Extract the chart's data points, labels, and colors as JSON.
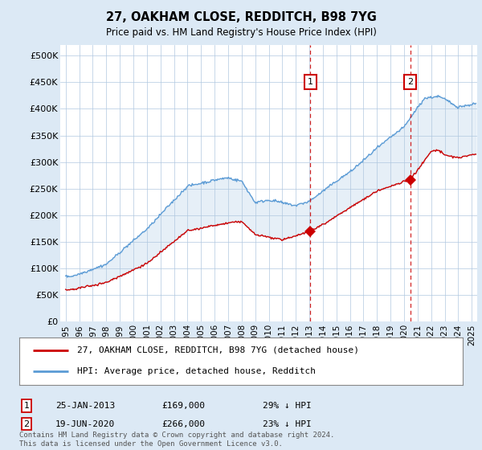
{
  "title": "27, OAKHAM CLOSE, REDDITCH, B98 7YG",
  "subtitle": "Price paid vs. HM Land Registry's House Price Index (HPI)",
  "ylabel_ticks": [
    "£0",
    "£50K",
    "£100K",
    "£150K",
    "£200K",
    "£250K",
    "£300K",
    "£350K",
    "£400K",
    "£450K",
    "£500K"
  ],
  "ytick_values": [
    0,
    50000,
    100000,
    150000,
    200000,
    250000,
    300000,
    350000,
    400000,
    450000,
    500000
  ],
  "ylim": [
    0,
    520000
  ],
  "xlim_start": 1994.6,
  "xlim_end": 2025.4,
  "hpi_color": "#5b9bd5",
  "hpi_fill_color": "#dce9f5",
  "price_color": "#cc0000",
  "marker1_date": 2013.07,
  "marker1_price": 169000,
  "marker1_label": "25-JAN-2013",
  "marker1_value": "£169,000",
  "marker1_pct": "29% ↓ HPI",
  "marker2_date": 2020.47,
  "marker2_price": 266000,
  "marker2_label": "19-JUN-2020",
  "marker2_value": "£266,000",
  "marker2_pct": "23% ↓ HPI",
  "legend_line1": "27, OAKHAM CLOSE, REDDITCH, B98 7YG (detached house)",
  "legend_line2": "HPI: Average price, detached house, Redditch",
  "footnote": "Contains HM Land Registry data © Crown copyright and database right 2024.\nThis data is licensed under the Open Government Licence v3.0.",
  "background_color": "#dce9f5",
  "plot_bg_color": "#dce9f5",
  "grid_color": "#b0c8e0",
  "plot_inner_bg": "#ffffff"
}
